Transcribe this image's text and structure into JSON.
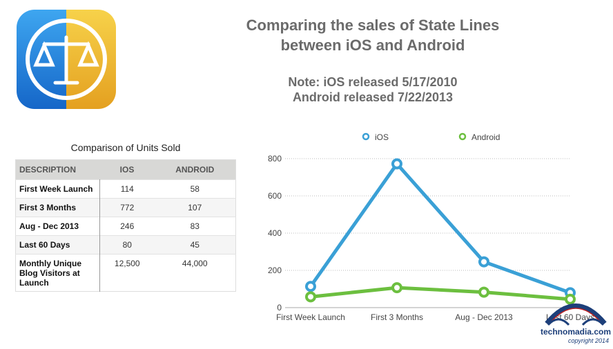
{
  "title": "Comparing the sales of State Lines between iOS and Android",
  "title_lines": [
    "Comparing the sales of State Lines",
    "between iOS and Android"
  ],
  "note_lines": [
    "Note: iOS released 5/17/2010",
    "Android released 7/22/2013"
  ],
  "table": {
    "caption": "Comparison of Units Sold",
    "headers": [
      "DESCRIPTION",
      "IOS",
      "ANDROID"
    ],
    "rows": [
      [
        "First Week Launch",
        "114",
        "58"
      ],
      [
        "First 3 Months",
        "772",
        "107"
      ],
      [
        "Aug - Dec 2013",
        "246",
        "83"
      ],
      [
        "Last 60 Days",
        "80",
        "45"
      ],
      [
        "Monthly Unique Blog Visitors at Launch",
        "12,500",
        "44,000"
      ]
    ]
  },
  "watermark": {
    "text": "technomadia.com",
    "copyright": "copyright 2014"
  },
  "chart_data": {
    "type": "line",
    "categories": [
      "First Week Launch",
      "First 3 Months",
      "Aug - Dec 2013",
      "Last 60 Days"
    ],
    "series": [
      {
        "name": "iOS",
        "color": "#3aa0d6",
        "values": [
          114,
          772,
          246,
          80
        ]
      },
      {
        "name": "Android",
        "color": "#6cbf3f",
        "values": [
          58,
          107,
          83,
          45
        ]
      }
    ],
    "yticks": [
      "0",
      "200",
      "400",
      "600",
      "800"
    ],
    "ylim": [
      0,
      800
    ],
    "legend": "top",
    "grid": true
  }
}
